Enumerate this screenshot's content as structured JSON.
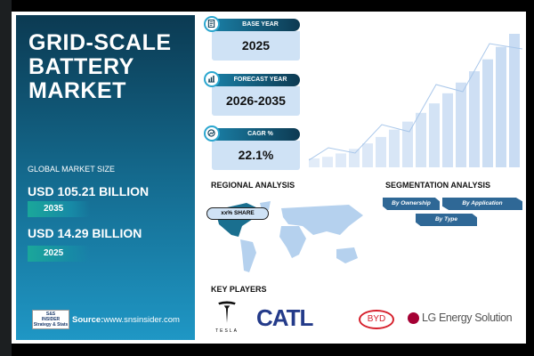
{
  "title": "GRID-SCALE BATTERY MARKET",
  "title_lines": [
    "GRID-SCALE",
    "BATTERY",
    "MARKET"
  ],
  "market": {
    "label": "GLOBAL MARKET SIZE",
    "value_2035": "USD 105.21 BILLION",
    "year_2035": "2035",
    "value_2025": "USD 14.29 BILLION",
    "year_2025": "2025"
  },
  "source": {
    "label": "Source:",
    "url": "www.snsinsider.com",
    "logo_text": "S&S INSIDER Strategy & Stats"
  },
  "kpis": [
    {
      "label": "BASE YEAR",
      "value": "2025",
      "icon": "document-icon"
    },
    {
      "label": "FORECAST YEAR",
      "value": "2026-2035",
      "icon": "bar-chart-icon"
    },
    {
      "label": "CAGR %",
      "value": "22.1%",
      "icon": "growth-icon"
    }
  ],
  "regional": {
    "title": "REGIONAL ANALYSIS",
    "share": "xx% SHARE"
  },
  "segmentation": {
    "title": "SEGMENTATION ANALYSIS",
    "items": [
      "By Ownership",
      "By Application",
      "By Type"
    ]
  },
  "key_players": {
    "title": "KEY PLAYERS",
    "companies": [
      "TESLA",
      "CATL",
      "BYD",
      "LG Energy Solution"
    ]
  },
  "colors": {
    "panel_top": "#0b3a52",
    "panel_bottom": "#1f97c5",
    "accent": "#2aa6cf",
    "segment": "#2f6896",
    "kpi_box": "#cfe2f5"
  }
}
